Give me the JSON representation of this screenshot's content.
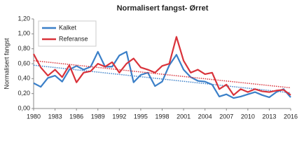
{
  "chart_data": {
    "type": "line",
    "title": "Normalisert fangst- Ørret",
    "y_label": "Normalisert fangst",
    "x": [
      1980,
      1981,
      1982,
      1983,
      1984,
      1985,
      1986,
      1987,
      1988,
      1989,
      1990,
      1991,
      1992,
      1993,
      1994,
      1995,
      1996,
      1997,
      1998,
      1999,
      2000,
      2001,
      2002,
      2003,
      2004,
      2005,
      2006,
      2007,
      2008,
      2009,
      2010,
      2011,
      2012,
      2013,
      2014,
      2015,
      2016
    ],
    "series": [
      {
        "name": "Kalket",
        "color": "#3a7fc8",
        "values": [
          0.34,
          0.29,
          0.41,
          0.44,
          0.36,
          0.52,
          0.57,
          0.52,
          0.56,
          0.76,
          0.56,
          0.56,
          0.71,
          0.76,
          0.35,
          0.45,
          0.48,
          0.3,
          0.36,
          0.58,
          0.72,
          0.52,
          0.42,
          0.37,
          0.36,
          0.32,
          0.16,
          0.19,
          0.14,
          0.16,
          0.19,
          0.22,
          0.18,
          0.15,
          0.22,
          0.26,
          0.15
        ]
      },
      {
        "name": "Referanse",
        "color": "#d9323a",
        "values": [
          0.73,
          0.55,
          0.44,
          0.52,
          0.42,
          0.58,
          0.35,
          0.48,
          0.5,
          0.6,
          0.56,
          0.62,
          0.48,
          0.6,
          0.67,
          0.55,
          0.52,
          0.48,
          0.57,
          0.6,
          0.96,
          0.64,
          0.48,
          0.52,
          0.46,
          0.48,
          0.26,
          0.32,
          0.18,
          0.26,
          0.22,
          0.26,
          0.23,
          0.22,
          0.24,
          0.25,
          0.18
        ]
      }
    ],
    "trendline": true,
    "legend": "upper-left",
    "grid": false,
    "xlim": [
      1980,
      2016
    ],
    "xticks": [
      1980,
      1983,
      1986,
      1989,
      1992,
      1995,
      1998,
      2001,
      2004,
      2007,
      2010,
      2013,
      2016
    ],
    "ylim": [
      0,
      1.2
    ],
    "yticks": [
      {
        "value": 0,
        "label": "0,00"
      },
      {
        "value": 0.2,
        "label": "0,20"
      },
      {
        "value": 0.4,
        "label": "0,40"
      },
      {
        "value": 0.6,
        "label": "0,60"
      },
      {
        "value": 0.8,
        "label": "0,80"
      },
      {
        "value": 1.0,
        "label": "1,00"
      },
      {
        "value": 1.2,
        "label": "1,20"
      }
    ]
  }
}
